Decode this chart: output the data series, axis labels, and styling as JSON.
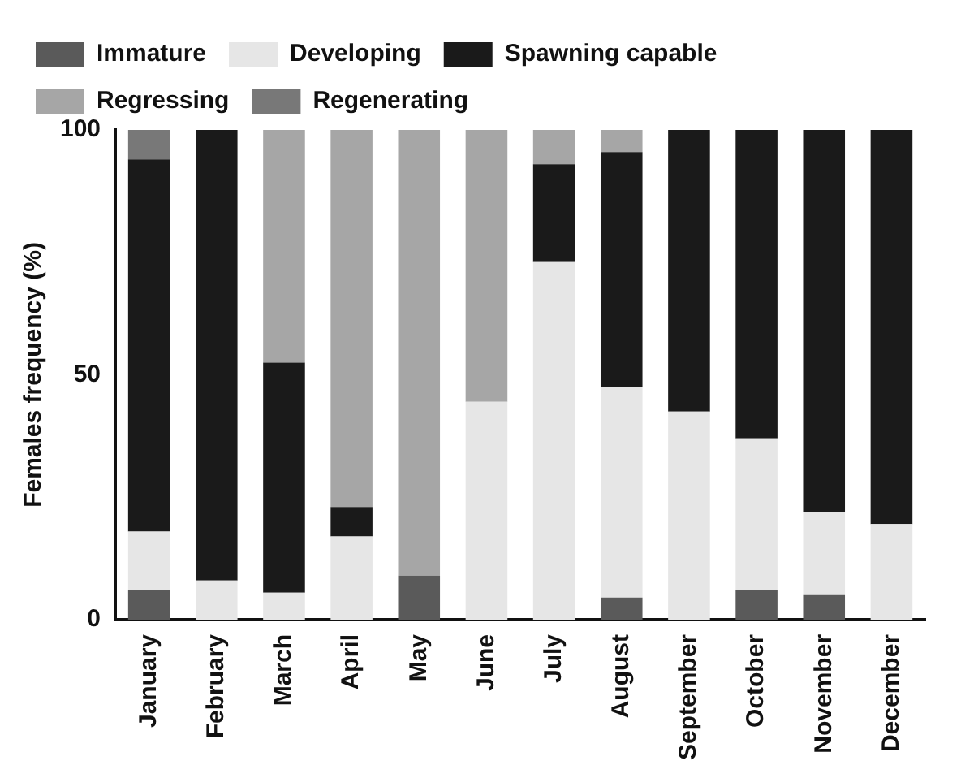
{
  "chart_data": {
    "type": "bar",
    "stacked": true,
    "ylabel": "Females frequency (%)",
    "categories": [
      "January",
      "February",
      "March",
      "April",
      "May",
      "June",
      "July",
      "August",
      "September",
      "October",
      "November",
      "December"
    ],
    "series": [
      {
        "name": "Immature",
        "color": "#5a5a5a",
        "values": [
          6,
          0,
          0,
          0,
          9,
          0,
          0,
          4.5,
          0,
          6,
          5,
          0
        ]
      },
      {
        "name": "Developing",
        "color": "#e6e6e6",
        "values": [
          12,
          8,
          5.5,
          17,
          0,
          44.5,
          73,
          43,
          42.5,
          31,
          17,
          19.5
        ]
      },
      {
        "name": "Spawning capable",
        "color": "#1a1a1a",
        "values": [
          76,
          92,
          47,
          6,
          0,
          0,
          20,
          48,
          57.5,
          63,
          78,
          80.5
        ]
      },
      {
        "name": "Regressing",
        "color": "#a6a6a6",
        "values": [
          0,
          0,
          47.5,
          77,
          91,
          55.5,
          7,
          4.5,
          0,
          0,
          0,
          0
        ]
      },
      {
        "name": "Regenerating",
        "color": "#787878",
        "values": [
          6,
          0,
          0,
          0,
          0,
          0,
          0,
          0,
          0,
          0,
          0,
          0
        ]
      }
    ],
    "ylim": [
      0,
      100
    ],
    "yticks": [
      0,
      50,
      100
    ],
    "grid": false,
    "legend": "top"
  }
}
